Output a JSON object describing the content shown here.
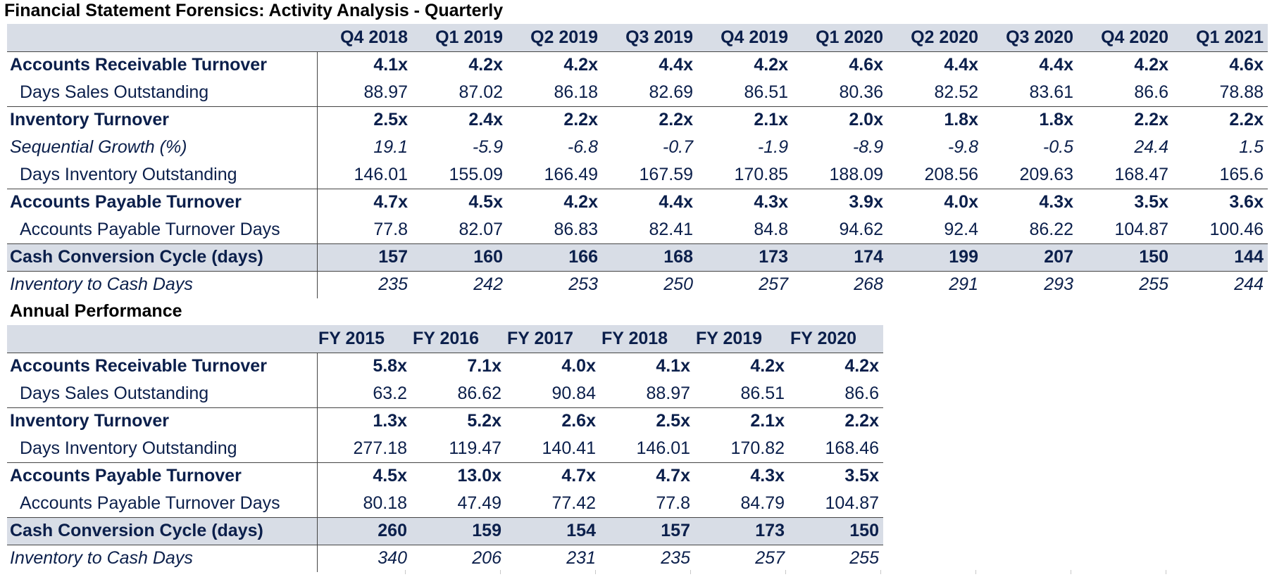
{
  "title": "Financial Statement Forensics: Activity Analysis - Quarterly",
  "quarterly": {
    "columns": [
      "Q4 2018",
      "Q1 2019",
      "Q2 2019",
      "Q3 2019",
      "Q4 2019",
      "Q1 2020",
      "Q2 2020",
      "Q3 2020",
      "Q4 2020",
      "Q1 2021"
    ],
    "rows": [
      {
        "label": "Accounts Receivable Turnover",
        "style": "bold topline",
        "values": [
          "4.1x",
          "4.2x",
          "4.2x",
          "4.4x",
          "4.2x",
          "4.6x",
          "4.4x",
          "4.4x",
          "4.2x",
          "4.6x"
        ]
      },
      {
        "label": "Days Sales Outstanding",
        "style": "indent",
        "values": [
          "88.97",
          "87.02",
          "86.18",
          "82.69",
          "86.51",
          "80.36",
          "82.52",
          "83.61",
          "86.6",
          "78.88"
        ]
      },
      {
        "label": "Inventory Turnover",
        "style": "bold topline",
        "values": [
          "2.5x",
          "2.4x",
          "2.2x",
          "2.2x",
          "2.1x",
          "2.0x",
          "1.8x",
          "1.8x",
          "2.2x",
          "2.2x"
        ]
      },
      {
        "label": "Sequential Growth (%)",
        "style": "italic",
        "values": [
          "19.1",
          "-5.9",
          "-6.8",
          "-0.7",
          "-1.9",
          "-8.9",
          "-9.8",
          "-0.5",
          "24.4",
          "1.5"
        ]
      },
      {
        "label": "Days Inventory Outstanding",
        "style": "indent",
        "values": [
          "146.01",
          "155.09",
          "166.49",
          "167.59",
          "170.85",
          "188.09",
          "208.56",
          "209.63",
          "168.47",
          "165.6"
        ]
      },
      {
        "label": "Accounts Payable Turnover",
        "style": "bold topline",
        "values": [
          "4.7x",
          "4.5x",
          "4.2x",
          "4.4x",
          "4.3x",
          "3.9x",
          "4.0x",
          "4.3x",
          "3.5x",
          "3.6x"
        ]
      },
      {
        "label": "Accounts Payable Turnover Days",
        "style": "indent",
        "values": [
          "77.8",
          "82.07",
          "86.83",
          "82.41",
          "84.8",
          "94.62",
          "92.4",
          "86.22",
          "104.87",
          "100.46"
        ]
      },
      {
        "label": "Cash Conversion Cycle (days)",
        "style": "shade",
        "values": [
          "157",
          "160",
          "166",
          "168",
          "173",
          "174",
          "199",
          "207",
          "150",
          "144"
        ]
      },
      {
        "label": "Inventory to Cash Days",
        "style": "italic",
        "values": [
          "235",
          "242",
          "253",
          "250",
          "257",
          "268",
          "291",
          "293",
          "255",
          "244"
        ]
      }
    ]
  },
  "annual": {
    "title": "Annual Performance",
    "columns": [
      "FY 2015",
      "FY 2016",
      "FY 2017",
      "FY 2018",
      "FY 2019",
      "FY 2020"
    ],
    "rows": [
      {
        "label": "Accounts Receivable Turnover",
        "style": "bold topline",
        "values": [
          "5.8x",
          "7.1x",
          "4.0x",
          "4.1x",
          "4.2x",
          "4.2x"
        ]
      },
      {
        "label": "Days Sales Outstanding",
        "style": "indent",
        "values": [
          "63.2",
          "86.62",
          "90.84",
          "88.97",
          "86.51",
          "86.6"
        ]
      },
      {
        "label": "Inventory Turnover",
        "style": "bold topline",
        "values": [
          "1.3x",
          "5.2x",
          "2.6x",
          "2.5x",
          "2.1x",
          "2.2x"
        ]
      },
      {
        "label": "Days Inventory Outstanding",
        "style": "indent",
        "values": [
          "277.18",
          "119.47",
          "140.41",
          "146.01",
          "170.82",
          "168.46"
        ]
      },
      {
        "label": "Accounts Payable Turnover",
        "style": "bold topline",
        "values": [
          "4.5x",
          "13.0x",
          "4.7x",
          "4.7x",
          "4.3x",
          "3.5x"
        ]
      },
      {
        "label": "Accounts Payable Turnover Days",
        "style": "indent",
        "values": [
          "80.18",
          "47.49",
          "77.42",
          "77.8",
          "84.79",
          "104.87"
        ]
      },
      {
        "label": "Cash Conversion Cycle (days)",
        "style": "shade",
        "values": [
          "260",
          "159",
          "154",
          "157",
          "173",
          "150"
        ]
      },
      {
        "label": "Inventory to Cash Days",
        "style": "italic",
        "values": [
          "340",
          "206",
          "231",
          "235",
          "257",
          "255"
        ]
      }
    ]
  },
  "colors": {
    "text": "#0b1f4b",
    "header_fill": "#d8dde6",
    "rule": "#444444"
  }
}
